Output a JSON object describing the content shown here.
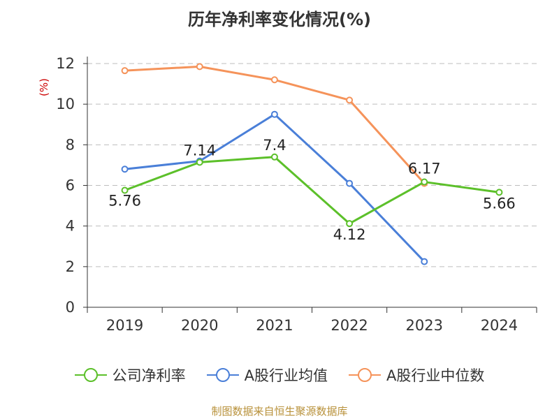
{
  "chart_data": {
    "type": "line",
    "title": "历年净利率变化情况(%)",
    "ylabel": "(%)",
    "categories": [
      "2019",
      "2020",
      "2021",
      "2022",
      "2023",
      "2024"
    ],
    "ylim": [
      0,
      12
    ],
    "yticks": [
      0,
      2,
      4,
      6,
      8,
      10,
      12
    ],
    "grid": true,
    "legend_position": "bottom",
    "series": [
      {
        "name": "公司净利率",
        "color": "#5cc02a",
        "values": [
          5.76,
          7.14,
          7.4,
          4.12,
          6.17,
          5.66
        ],
        "labels": [
          "5.76",
          "7.14",
          "7.4",
          "4.12",
          "6.17",
          "5.66"
        ]
      },
      {
        "name": "A股行业均值",
        "color": "#4a7fd8",
        "values": [
          6.8,
          7.2,
          9.5,
          6.1,
          2.25,
          null
        ]
      },
      {
        "name": "A股行业中位数",
        "color": "#f5935a",
        "values": [
          11.65,
          11.85,
          11.2,
          10.2,
          6.1,
          null
        ]
      }
    ],
    "source": "制图数据来自恒生聚源数据库"
  }
}
